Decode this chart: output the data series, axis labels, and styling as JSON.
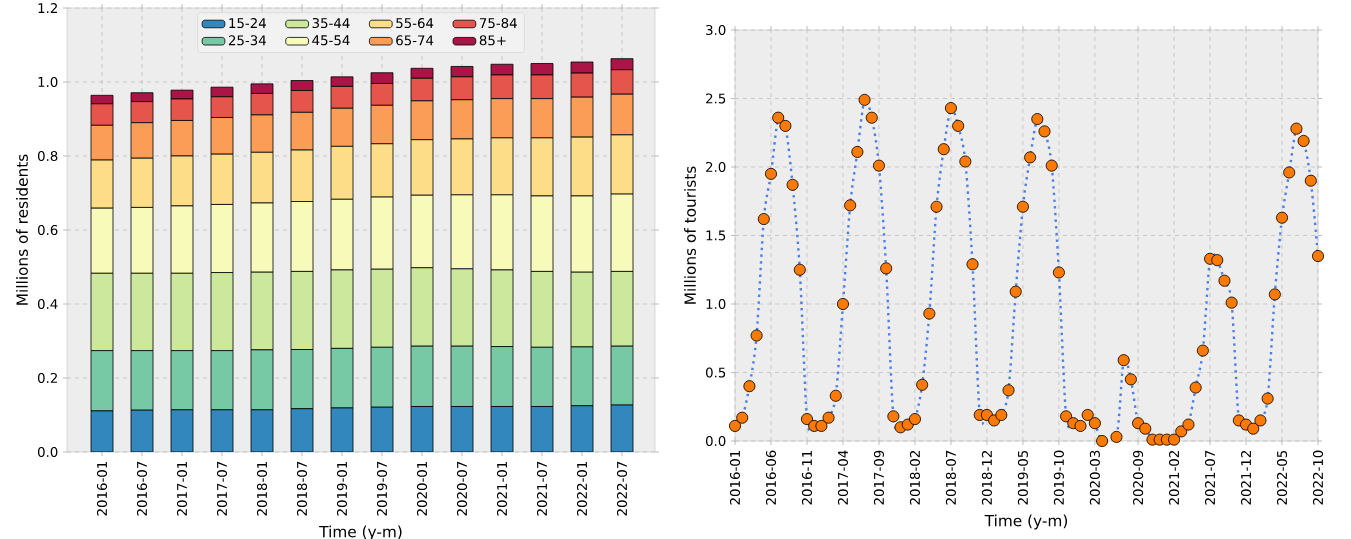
{
  "chart_data": [
    {
      "type": "bar",
      "stacked": true,
      "xlabel": "Time (y-m)",
      "ylabel": "Millions of residents",
      "categories": [
        "2016-01",
        "2016-07",
        "2017-01",
        "2017-07",
        "2018-01",
        "2018-07",
        "2019-01",
        "2019-07",
        "2020-01",
        "2020-07",
        "2021-01",
        "2021-07",
        "2022-01",
        "2022-07"
      ],
      "series": [
        {
          "name": "15-24",
          "color": "#3288bd",
          "values": [
            0.111,
            0.113,
            0.114,
            0.114,
            0.114,
            0.117,
            0.119,
            0.121,
            0.123,
            0.123,
            0.123,
            0.123,
            0.125,
            0.127
          ]
        },
        {
          "name": "25-34",
          "color": "#77c8a4",
          "values": [
            0.163,
            0.161,
            0.16,
            0.16,
            0.162,
            0.16,
            0.161,
            0.162,
            0.163,
            0.163,
            0.162,
            0.16,
            0.159,
            0.159
          ]
        },
        {
          "name": "35-44",
          "color": "#cbe89c",
          "values": [
            0.209,
            0.209,
            0.209,
            0.211,
            0.21,
            0.211,
            0.212,
            0.211,
            0.212,
            0.209,
            0.207,
            0.205,
            0.202,
            0.202
          ]
        },
        {
          "name": "45-54",
          "color": "#f8fab9",
          "values": [
            0.176,
            0.178,
            0.182,
            0.184,
            0.187,
            0.189,
            0.191,
            0.195,
            0.196,
            0.2,
            0.203,
            0.204,
            0.206,
            0.209
          ]
        },
        {
          "name": "55-64",
          "color": "#fedd89",
          "values": [
            0.13,
            0.133,
            0.135,
            0.136,
            0.137,
            0.139,
            0.143,
            0.144,
            0.15,
            0.151,
            0.154,
            0.157,
            0.159,
            0.16
          ]
        },
        {
          "name": "65-74",
          "color": "#fb9d56",
          "values": [
            0.094,
            0.096,
            0.096,
            0.099,
            0.101,
            0.102,
            0.103,
            0.104,
            0.105,
            0.106,
            0.106,
            0.106,
            0.108,
            0.11
          ]
        },
        {
          "name": "75-84",
          "color": "#e5554b",
          "values": [
            0.058,
            0.057,
            0.058,
            0.056,
            0.058,
            0.059,
            0.059,
            0.059,
            0.061,
            0.062,
            0.064,
            0.064,
            0.065,
            0.066
          ]
        },
        {
          "name": "85+",
          "color": "#ab1446",
          "values": [
            0.023,
            0.024,
            0.024,
            0.026,
            0.026,
            0.027,
            0.026,
            0.029,
            0.027,
            0.028,
            0.029,
            0.031,
            0.03,
            0.03
          ]
        }
      ],
      "ylim": [
        0,
        1.2
      ],
      "yticks": [
        {
          "value": 0,
          "label": "0.0"
        },
        {
          "value": 0.2,
          "label": "0.2"
        },
        {
          "value": 0.4,
          "label": "0.4"
        },
        {
          "value": 0.6,
          "label": "0.6"
        },
        {
          "value": 0.8,
          "label": "0.8"
        },
        {
          "value": 1.0,
          "label": "1.0"
        },
        {
          "value": 1.2,
          "label": "1.2"
        }
      ],
      "grid": true,
      "legend": "top"
    },
    {
      "type": "line",
      "xlabel": "Time (y-m)",
      "ylabel": "Millions of tourists",
      "marker": "circle",
      "line_style": "dotted",
      "x": [
        "2016-01",
        "2016-02",
        "2016-03",
        "2016-04",
        "2016-05",
        "2016-06",
        "2016-07",
        "2016-08",
        "2016-09",
        "2016-10",
        "2016-11",
        "2016-12",
        "2017-01",
        "2017-02",
        "2017-03",
        "2017-04",
        "2017-05",
        "2017-06",
        "2017-07",
        "2017-08",
        "2017-09",
        "2017-10",
        "2017-11",
        "2017-12",
        "2018-01",
        "2018-02",
        "2018-03",
        "2018-04",
        "2018-05",
        "2018-06",
        "2018-07",
        "2018-08",
        "2018-09",
        "2018-10",
        "2018-11",
        "2018-12",
        "2019-01",
        "2019-02",
        "2019-03",
        "2019-04",
        "2019-05",
        "2019-06",
        "2019-07",
        "2019-08",
        "2019-09",
        "2019-10",
        "2019-11",
        "2019-12",
        "2020-01",
        "2020-02",
        "2020-03",
        "2020-04",
        "2020-06",
        "2020-07",
        "2020-08",
        "2020-09",
        "2020-10",
        "2020-11",
        "2020-12",
        "2021-01",
        "2021-02",
        "2021-03",
        "2021-04",
        "2021-05",
        "2021-06",
        "2021-07",
        "2021-08",
        "2021-09",
        "2021-10",
        "2021-11",
        "2021-12",
        "2022-01",
        "2022-02",
        "2022-03",
        "2022-04",
        "2022-05",
        "2022-06",
        "2022-07",
        "2022-08",
        "2022-09",
        "2022-10"
      ],
      "series": [
        {
          "color": "#fb7a05",
          "values": [
            0.11,
            0.17,
            0.4,
            0.77,
            1.62,
            1.95,
            2.36,
            2.3,
            1.87,
            1.25,
            0.16,
            0.11,
            0.11,
            0.17,
            0.33,
            1.0,
            1.72,
            2.11,
            2.49,
            2.36,
            2.01,
            1.26,
            0.18,
            0.1,
            0.12,
            0.16,
            0.41,
            0.93,
            1.71,
            2.13,
            2.43,
            2.3,
            2.04,
            1.29,
            0.19,
            0.19,
            0.15,
            0.19,
            0.37,
            1.09,
            1.71,
            2.07,
            2.35,
            2.26,
            2.01,
            1.23,
            0.18,
            0.13,
            0.11,
            0.19,
            0.13,
            0.0,
            0.03,
            0.59,
            0.45,
            0.13,
            0.09,
            0.01,
            0.01,
            0.01,
            0.01,
            0.07,
            0.12,
            0.39,
            0.66,
            1.33,
            1.32,
            1.17,
            1.01,
            0.15,
            0.12,
            0.09,
            0.15,
            0.31,
            1.07,
            1.63,
            1.96,
            2.28,
            2.19,
            1.9,
            1.35
          ]
        }
      ],
      "xlim": [
        "2016-01",
        "2022-10"
      ],
      "xticks": [
        "2016-01",
        "2016-06",
        "2016-11",
        "2017-04",
        "2017-09",
        "2018-02",
        "2018-07",
        "2018-12",
        "2019-05",
        "2019-10",
        "2020-03",
        "2020-09",
        "2021-02",
        "2021-07",
        "2021-12",
        "2022-05",
        "2022-10"
      ],
      "ylim": [
        0,
        3
      ],
      "yticks": [
        {
          "value": 0,
          "label": "0.0"
        },
        {
          "value": 0.5,
          "label": "0.5"
        },
        {
          "value": 1.0,
          "label": "1.0"
        },
        {
          "value": 1.5,
          "label": "1.5"
        },
        {
          "value": 2.0,
          "label": "2.0"
        },
        {
          "value": 2.5,
          "label": "2.5"
        },
        {
          "value": 3.0,
          "label": "3.0"
        }
      ],
      "grid": true
    }
  ]
}
